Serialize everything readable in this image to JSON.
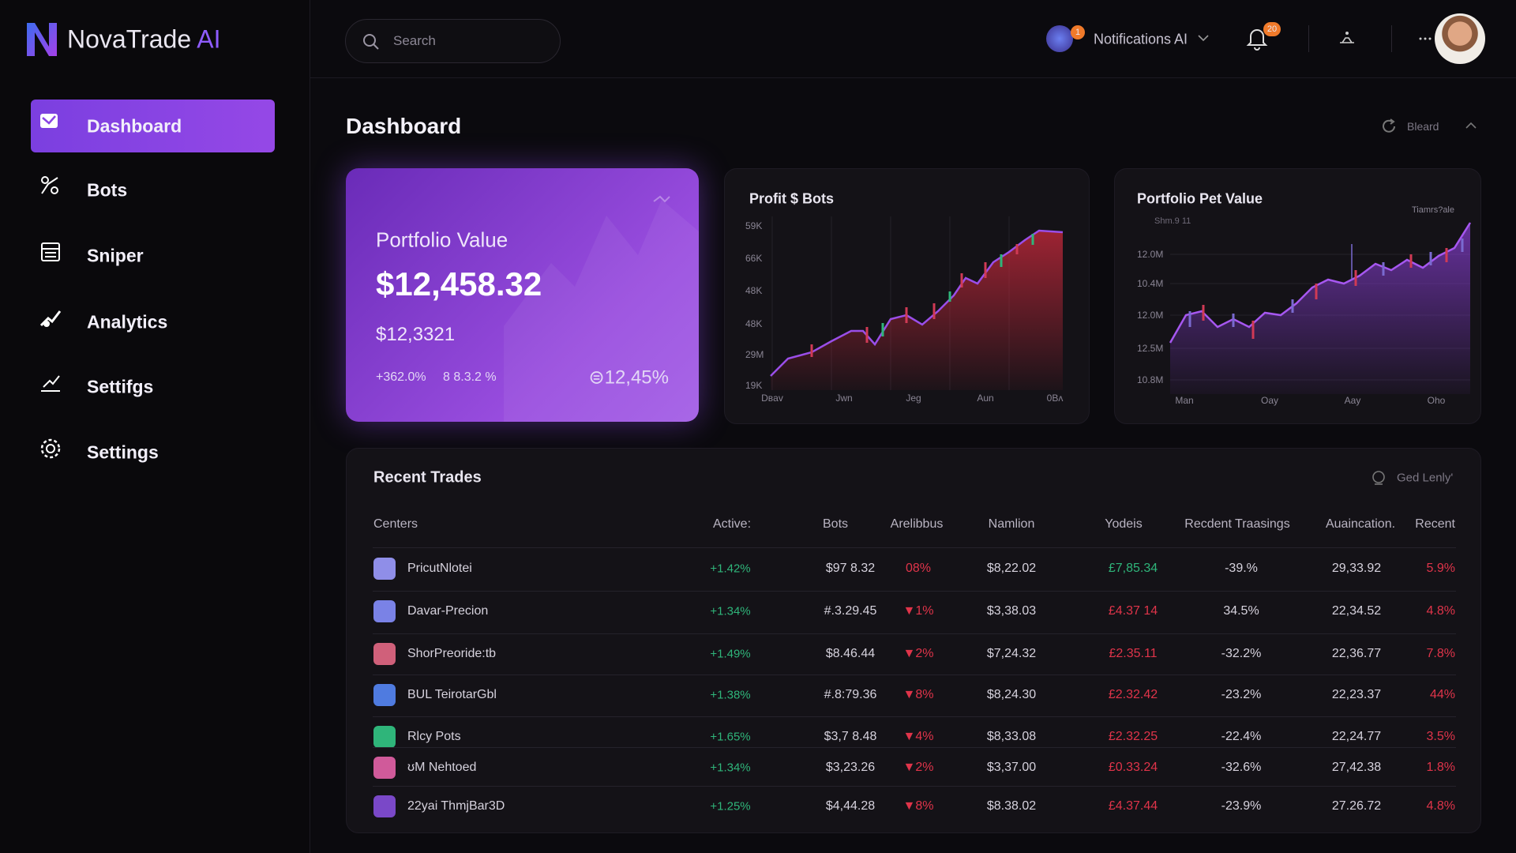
{
  "brand": {
    "name": "NovaTrade",
    "suffix": "AI"
  },
  "search": {
    "placeholder": "Search"
  },
  "topbar": {
    "avatar_badge": "1",
    "notifications": "Notifications AI",
    "bell_badge": "20"
  },
  "nav": [
    "Dashboard",
    "Bots",
    "Sniper",
    "Analytics",
    "Settifgs",
    "Settings"
  ],
  "page": {
    "title": "Dashboard",
    "action": "Bleard"
  },
  "portfolio_card": {
    "title": "Portfolio Value",
    "value": "$12,458.32",
    "subvalue": "$12,3321",
    "stat1": "+362.0%",
    "stat2": "8 8.3.2 %",
    "stat3": "⊜12,45%"
  },
  "profit_chart": {
    "title": "Profit $ Bots",
    "y_labels": [
      "59K",
      "66K",
      "48K",
      "48K",
      "29M",
      "19K"
    ],
    "x_labels": [
      "Dʙav",
      "Jwn",
      "Jeg",
      "Aun",
      "0Bʌ"
    ]
  },
  "value_chart": {
    "title": "Portfolio Pet Value",
    "subtitle": "Shm.9 11",
    "range": "Tiamrs?ale",
    "y_labels": [
      "12.0M",
      "10.4M",
      "12.0M",
      "12.5M",
      "10.8M"
    ],
    "x_labels": [
      "Man",
      "Oay",
      "Aay",
      "Oho"
    ]
  },
  "table": {
    "title": "Recent Trades",
    "action": "Ged Lenly'",
    "columns": [
      "Centers",
      "Active:",
      "Bots",
      "Arelibbus",
      "Namlion",
      "Yodeis",
      "Recdent Traasings",
      "Auaincation.",
      "Recent"
    ],
    "rows": [
      [
        "PricutNlotei",
        "+1.42%",
        "$97 8.32",
        "08%",
        "$8,22.02",
        "£7,85.34",
        "-39.%",
        "29,33.92",
        "5.9%"
      ],
      [
        "Davar-Precion",
        "+1.34%",
        "#.3.29.45",
        "▼1%",
        "$3,38.03",
        "£4.37 14",
        "34.5%",
        "22,34.52",
        "4.8%"
      ],
      [
        "ShorPreoride:tb",
        "+1.49%",
        "$8.46.44",
        "▼2%",
        "$7,24.32",
        "£2.35.11",
        "-32.2%",
        "22,36.77",
        "7.8%"
      ],
      [
        "BUL TeirotarGbl",
        "+1.38%",
        "#.8:79.36",
        "▼8%",
        "$8,24.30",
        "£2.32.42",
        "-23.2%",
        "22,23.37",
        "44%"
      ],
      [
        "Rlcy Pots",
        "+1.65%",
        "$3,7 8.48",
        "▼4%",
        "$8,33.08",
        "£2.32.25",
        "-22.4%",
        "22,24.77",
        "3.5%"
      ],
      [
        "ʊM Nehtoed",
        "+1.34%",
        "$3,23.26",
        "▼2%",
        "$3,37.00",
        "£0.33.24",
        "-32.6%",
        "27,42.38",
        "1.8%"
      ],
      [
        "22yai ThmjBar3D",
        "+1.25%",
        "$4,44.28",
        "▼8%",
        "$8.38.02",
        "£4.37.44",
        "-23.9%",
        "27.26.72",
        "4.8%"
      ]
    ]
  }
}
